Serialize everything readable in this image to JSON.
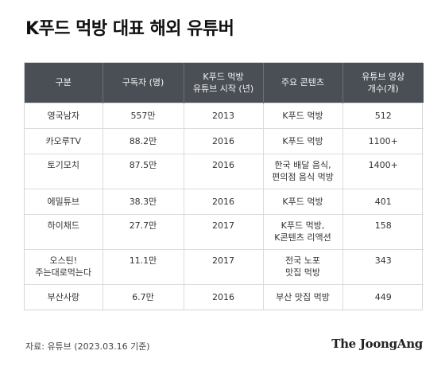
{
  "title": "K푸드 먹방 대표 해외 유튜버",
  "table": {
    "headers": [
      {
        "lines": [
          "구분"
        ]
      },
      {
        "lines": [
          "구독자 (명)"
        ]
      },
      {
        "lines": [
          "K푸드 먹방",
          "유튜브 시작 (년)"
        ]
      },
      {
        "lines": [
          "주요 콘텐츠"
        ]
      },
      {
        "lines": [
          "유튜브 영상",
          "개수(개)"
        ]
      }
    ],
    "rows": [
      {
        "name": [
          "영국남자"
        ],
        "subs": "557만",
        "year": "2013",
        "content": [
          "K푸드 먹방"
        ],
        "videos": "512"
      },
      {
        "name": [
          "카오루TV"
        ],
        "subs": "88.2만",
        "year": "2016",
        "content": [
          "K푸드 먹방"
        ],
        "videos": "1100+"
      },
      {
        "name": [
          "토기모치"
        ],
        "subs": "87.5만",
        "year": "2016",
        "content": [
          "한국 배달 음식,",
          "편의점 음식 먹방"
        ],
        "videos": "1400+"
      },
      {
        "name": [
          "에밀튜브"
        ],
        "subs": "38.3만",
        "year": "2016",
        "content": [
          "K푸드 먹방"
        ],
        "videos": "401"
      },
      {
        "name": [
          "하이채드"
        ],
        "subs": "27.7만",
        "year": "2017",
        "content": [
          "K푸드 먹방,",
          "K콘텐츠 리액션"
        ],
        "videos": "158"
      },
      {
        "name": [
          "오스틴!",
          "주는대로먹는다"
        ],
        "subs": "11.1만",
        "year": "2017",
        "content": [
          "전국 노포",
          "맛집 먹방"
        ],
        "videos": "343"
      },
      {
        "name": [
          "부산사랑"
        ],
        "subs": "6.7만",
        "year": "2016",
        "content": [
          "부산 맛집 먹방"
        ],
        "videos": "449"
      }
    ]
  },
  "source": "자료: 유튜브 (2023.03.16 기준)",
  "logo": "The JoongAng",
  "colors": {
    "header_bg": "#4a4f55",
    "border": "#dcdcdc"
  }
}
